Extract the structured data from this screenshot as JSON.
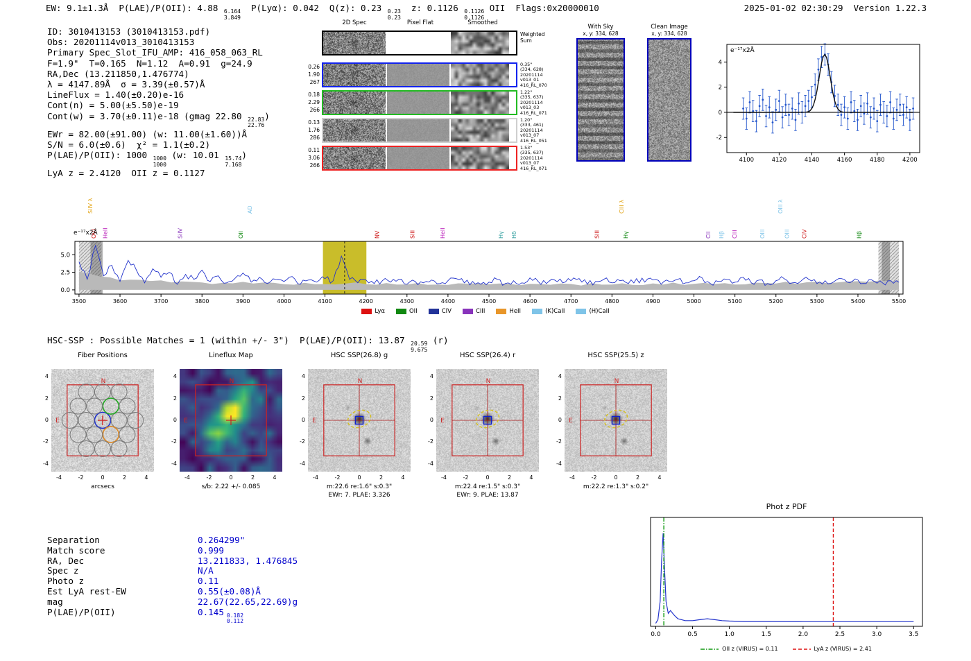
{
  "colors": {
    "value_blue": "#0000cc",
    "accent_red": "#cc2222",
    "band_yellow": "#c9bd2a",
    "spectrum_blue": "#2233cc",
    "panel_border_blue": "#0000bb"
  },
  "header": {
    "left": [
      {
        "t": "EW: 9.1±1.3Å  P(LAE)/P(OII): 4.88 "
      },
      {
        "hi": "6.164",
        "lo": "3.849"
      },
      {
        "t": "  P(Lyα): 0.042  Q(z): 0.23 "
      },
      {
        "hi": "0.23",
        "lo": "0.23"
      },
      {
        "t": "  z: 0.1126 "
      },
      {
        "hi": "0.1126",
        "lo": "0.1126"
      },
      {
        "t": " OII  Flags:0x20000010"
      }
    ],
    "right": "2025-01-02 02:30:29  Version 1.22.3"
  },
  "info": {
    "lines": [
      [
        {
          "t": "ID: 3010413153 (3010413153.pdf)"
        }
      ],
      [
        {
          "t": "Obs: 20201114v013_3010413153"
        }
      ],
      [
        {
          "t": "Primary Spec_Slot_IFU_AMP: 416_058_063_RL"
        }
      ],
      [
        {
          "t": "F=1.9\"  T=0.165  N=1.12  A=0.91  g=24.9"
        }
      ],
      [
        {
          "t": "RA,Dec (13.211850,1.476774)"
        }
      ],
      [
        {
          "t": "λ = 4147.89Å  σ = 3.39(±0.57)Å"
        }
      ],
      [
        {
          "t": "LineFlux = 1.40(±0.20)e-16"
        }
      ],
      [
        {
          "t": "Cont(n) = 5.00(±5.50)e-19"
        }
      ],
      [
        {
          "t": "Cont(w) = 3.70(±0.11)e-18 (gmag 22.80 "
        },
        {
          "hi": "22.83",
          "lo": "22.76"
        },
        {
          "t": ")"
        }
      ],
      [
        {
          "t": "EWr = 82.00(±91.00) (w: 11.00(±1.60))Å"
        }
      ],
      [
        {
          "t": "S/N = 6.0(±0.6)  χ² = 1.1(±0.2)"
        }
      ],
      [
        {
          "t": "P(LAE)/P(OII): 1000 "
        },
        {
          "hi": "1000",
          "lo": "1000"
        },
        {
          "t": " (w: 10.01 "
        },
        {
          "hi": "15.74",
          "lo": "7.168"
        },
        {
          "t": ")"
        }
      ],
      [
        {
          "t": "LyA z = 2.4120  OII z = 0.1127"
        }
      ]
    ]
  },
  "twod": {
    "col_headers": [
      "2D Spec",
      "Pixel Flat",
      "Smoothed"
    ],
    "weighted_sum_label": "Weighted\nSum",
    "rows": [
      {
        "border": "#000000",
        "left": "",
        "right": ""
      },
      {
        "border": "#1122ee",
        "left": "0.26\n1.90\n267",
        "right": "0.35\"\n(334, 628)\n20201114\nv013_01\n416_RL_070"
      },
      {
        "border": "#22bb22",
        "left": "0.18\n2.29\n266",
        "right": "1.22\"\n(335, 637)\n20201114\nv013_03\n416_RL_071"
      },
      {
        "border": "#cfcfcf",
        "left": "0.13\n1.76\n286",
        "right": "1.20\"\n(333, 461)\n20201114\nv013_07\n416_RL_051"
      },
      {
        "border": "#ee2222",
        "left": "0.11\n3.06\n266",
        "right": "1.53\"\n(335, 637)\n20201114\nv013_07\n416_RL_071"
      }
    ]
  },
  "withsky": {
    "title": "With Sky",
    "coords": "x, y: 334, 628"
  },
  "clean": {
    "title": "Clean Image",
    "coords": "x, y: 334, 628"
  },
  "hsc_header": [
    {
      "t": "HSC-SSP : Possible Matches = 1 (within +/- 3\")  P(LAE)/P(OII): 13.87 "
    },
    {
      "hi": "20.59",
      "lo": "9.675"
    },
    {
      "t": " (r)"
    }
  ],
  "cutouts": {
    "ticks": [
      -4,
      -2,
      0,
      2,
      4
    ],
    "compass": {
      "n": "N",
      "e": "E"
    },
    "fiber_circles": [
      [
        0,
        0,
        "b"
      ],
      [
        1.5,
        0,
        ""
      ],
      [
        -1.5,
        0,
        ""
      ],
      [
        3,
        0,
        ""
      ],
      [
        -3,
        0,
        ""
      ],
      [
        0.75,
        1.3,
        "g"
      ],
      [
        -0.75,
        1.3,
        ""
      ],
      [
        2.25,
        1.3,
        ""
      ],
      [
        -2.25,
        1.3,
        ""
      ],
      [
        0.75,
        -1.3,
        "o"
      ],
      [
        -0.75,
        -1.3,
        ""
      ],
      [
        2.25,
        -1.3,
        ""
      ],
      [
        -2.25,
        -1.3,
        ""
      ],
      [
        0,
        2.6,
        ""
      ],
      [
        1.5,
        2.6,
        ""
      ],
      [
        -1.5,
        2.6,
        ""
      ],
      [
        0,
        -2.6,
        ""
      ],
      [
        1.5,
        -2.6,
        ""
      ],
      [
        -1.5,
        -2.6,
        ""
      ]
    ],
    "panels": [
      {
        "title": "Fiber Positions",
        "xlabel": "arcsecs",
        "type": "fiber"
      },
      {
        "title": "Lineflux Map",
        "xlabel": "s/b: 2.22 +/- 0.085",
        "type": "lineflux"
      },
      {
        "title": "HSC SSP(26.8) g",
        "xlabel": "m:22.6 re:1.6\" s:0.3\"",
        "xlabel2": "EWr: 7. PLAE: 3.326",
        "type": "img"
      },
      {
        "title": "HSC SSP(26.4) r",
        "xlabel": "m:22.4 re:1.5\" s:0.3\"",
        "xlabel2": "EWr: 9. PLAE: 13.87",
        "type": "img"
      },
      {
        "title": "HSC SSP(25.5) z",
        "xlabel": "m:22.2 re:1.3\" s:0.2\"",
        "type": "img"
      }
    ]
  },
  "match_table": {
    "rows": [
      {
        "key": "Separation",
        "val": "0.264299\""
      },
      {
        "key": "Match score",
        "val": "0.999"
      },
      {
        "key": "RA, Dec",
        "val": "13.211833, 1.476845"
      },
      {
        "key": "Spec z",
        "val": "N/A"
      },
      {
        "key": "Photo z",
        "val": "0.11"
      },
      {
        "key": "Est LyA rest-EW",
        "val": "0.55(±0.08)Å"
      },
      {
        "key": "mag",
        "val": "22.67(22.65,22.69)g"
      },
      {
        "key": "P(LAE)/P(OII)",
        "val": "0.145",
        "hi": "0.182",
        "lo": "0.112"
      }
    ]
  },
  "chart_data": [
    {
      "id": "zoom_spec",
      "type": "scatter",
      "corner_label": "e⁻¹⁷x2Å",
      "xlim": [
        4088,
        4206
      ],
      "ylim": [
        -3.2,
        5.4
      ],
      "xticks": [
        4100,
        4120,
        4140,
        4160,
        4180,
        4200
      ],
      "yticks": [
        -2,
        0,
        2,
        4
      ],
      "gauss": {
        "amp": 4.6,
        "mu": 4147.89,
        "sigma": 3.39
      },
      "points": {
        "x_start": 4098,
        "x_step": 2,
        "yerr": 0.85,
        "y": [
          0.3,
          -0.5,
          0.8,
          0.1,
          -0.7,
          0.5,
          1.0,
          -0.3,
          0.4,
          -0.8,
          0.2,
          0.9,
          -0.4,
          0.6,
          -0.2,
          0.3,
          -0.6,
          0.7,
          0.0,
          0.5,
          0.9,
          1.2,
          2.2,
          3.4,
          4.4,
          4.6,
          3.8,
          2.4,
          1.3,
          0.6,
          -0.2,
          0.4,
          -0.5,
          0.8,
          0.1,
          -0.6,
          0.5,
          -0.1,
          0.7,
          -0.4,
          0.3,
          -0.7,
          0.6,
          0.0,
          -0.3,
          0.8,
          -0.5,
          0.2,
          0.6,
          -0.2,
          0.4,
          -0.6,
          0.3
        ]
      }
    },
    {
      "id": "main_spec",
      "type": "line",
      "corner_label": "e⁻¹⁷x2Å",
      "xlim": [
        3490,
        5510
      ],
      "ylim": [
        -0.6,
        6.9
      ],
      "xticks": [
        3500,
        3600,
        3700,
        3800,
        3900,
        4000,
        4100,
        4200,
        4300,
        4400,
        4500,
        4600,
        4700,
        4800,
        4900,
        5000,
        5100,
        5200,
        5300,
        5400,
        5500
      ],
      "yticks": [
        0,
        2.5,
        5
      ],
      "highlight_band": [
        4095,
        4201
      ],
      "highlight_color": "#c9bd2a",
      "dashed_line_x": 4147.89,
      "hatch_bands": [
        [
          3500,
          3555
        ],
        [
          5450,
          5500
        ]
      ],
      "shade_blocks": [
        [
          3528,
          3558
        ],
        [
          5458,
          5478
        ]
      ],
      "x_start": 3500,
      "x_step": 20,
      "values": [
        4.0,
        1.5,
        6.3,
        2.0,
        3.5,
        1.2,
        4.2,
        2.8,
        1.0,
        3.0,
        1.8,
        2.5,
        0.8,
        2.2,
        1.5,
        2.8,
        1.2,
        2.0,
        1.0,
        1.6,
        2.4,
        1.1,
        1.8,
        0.9,
        1.5,
        1.2,
        1.9,
        0.8,
        1.4,
        1.1,
        1.6,
        1.3,
        4.8,
        1.5,
        1.0,
        1.4,
        0.9,
        1.3,
        1.1,
        1.5,
        0.8,
        1.2,
        1.0,
        1.4,
        0.9,
        1.3,
        1.6,
        1.0,
        1.2,
        0.8,
        1.1,
        1.5,
        0.9,
        1.3,
        1.0,
        1.7,
        1.2,
        0.9,
        1.4,
        1.0,
        1.3,
        1.6,
        0.8,
        1.2,
        1.5,
        1.0,
        1.3,
        0.9,
        1.6,
        1.1,
        1.4,
        0.8,
        1.2,
        1.5,
        1.0,
        1.3,
        1.7,
        0.9,
        1.2,
        1.5,
        1.1,
        1.8,
        1.0,
        1.4,
        0.9,
        1.3,
        1.6,
        1.0,
        1.2,
        1.5,
        0.9,
        1.3,
        1.1,
        1.6,
        1.0,
        1.4,
        0.9,
        1.2,
        1.0,
        1.3,
        1.1
      ],
      "err_band": [
        2.5,
        1.5,
        1.2,
        1.0,
        1.0,
        0.9,
        0.9,
        0.9,
        0.8,
        0.8,
        0.8,
        0.8,
        0.8,
        0.8,
        0.8,
        0.9,
        0.9,
        1.0,
        1.0,
        1.1,
        1.2
      ],
      "line_labels": [
        {
          "text": "SiIV λ",
          "wave": 3532,
          "color": "#e2a414",
          "tier": 2
        },
        {
          "text": "OVI",
          "wave": 3541,
          "color": "#cc1111",
          "tier": 1
        },
        {
          "text": "HeII",
          "wave": 3569,
          "color": "#bb22bb",
          "tier": 1
        },
        {
          "text": "SiIV",
          "wave": 3751,
          "color": "#8833bb",
          "tier": 1
        },
        {
          "text": "OII",
          "wave": 3899,
          "color": "#118811",
          "tier": 1
        },
        {
          "text": "AD",
          "wave": 3921,
          "color": "#7fc4e8",
          "tier": 2
        },
        {
          "text": "NV",
          "wave": 4232,
          "color": "#cc1111",
          "tier": 1
        },
        {
          "text": "SIII",
          "wave": 4318,
          "color": "#cc1111",
          "tier": 1
        },
        {
          "text": "HeII",
          "wave": 4392,
          "color": "#bb22bb",
          "tier": 1
        },
        {
          "text": "Hγ",
          "wave": 4534,
          "color": "#33a0a0",
          "tier": 1
        },
        {
          "text": "Hδ",
          "wave": 4566,
          "color": "#33a0a0",
          "tier": 1
        },
        {
          "text": "SIII",
          "wave": 4768,
          "color": "#cc1111",
          "tier": 1
        },
        {
          "text": "CIII λ",
          "wave": 4828,
          "color": "#e2a414",
          "tier": 2
        },
        {
          "text": "Hγ",
          "wave": 4838,
          "color": "#118811",
          "tier": 1
        },
        {
          "text": "CII",
          "wave": 5040,
          "color": "#8833bb",
          "tier": 1
        },
        {
          "text": "Hβ",
          "wave": 5072,
          "color": "#7fc4e8",
          "tier": 1
        },
        {
          "text": "CIII",
          "wave": 5104,
          "color": "#bb22bb",
          "tier": 1
        },
        {
          "text": "OIII",
          "wave": 5172,
          "color": "#7fc4e8",
          "tier": 1
        },
        {
          "text": "OIII λ",
          "wave": 5216,
          "color": "#7fc4e8",
          "tier": 2
        },
        {
          "text": "OIII",
          "wave": 5232,
          "color": "#7fc4e8",
          "tier": 1
        },
        {
          "text": "CIV",
          "wave": 5274,
          "color": "#cc1111",
          "tier": 1
        },
        {
          "text": "Hβ",
          "wave": 5408,
          "color": "#118811",
          "tier": 1
        }
      ],
      "legend": [
        {
          "label": "Lyα",
          "color": "#dd1111"
        },
        {
          "label": "OII",
          "color": "#118811"
        },
        {
          "label": "CIV",
          "color": "#223399"
        },
        {
          "label": "CIII",
          "color": "#8833bb"
        },
        {
          "label": "HeII",
          "color": "#e8962a"
        },
        {
          "label": "(K)CaII",
          "color": "#7fc4e8"
        },
        {
          "label": "(H)CaII",
          "color": "#7fc4e8"
        }
      ]
    },
    {
      "id": "photz_pdf",
      "type": "line",
      "title": "Phot z PDF",
      "xlim": [
        -0.07,
        3.62
      ],
      "xticks": [
        0.0,
        0.5,
        1.0,
        1.5,
        2.0,
        2.5,
        3.0,
        3.5
      ],
      "x": [
        0,
        0.03,
        0.06,
        0.08,
        0.1,
        0.12,
        0.14,
        0.17,
        0.2,
        0.25,
        0.3,
        0.35,
        0.4,
        0.5,
        0.6,
        0.7,
        0.8,
        0.9,
        1.0,
        1.2,
        1.5,
        2.0,
        2.5,
        3.0,
        3.5
      ],
      "y": [
        0.01,
        0.05,
        0.25,
        0.7,
        1.0,
        0.6,
        0.25,
        0.12,
        0.15,
        0.1,
        0.06,
        0.05,
        0.04,
        0.04,
        0.05,
        0.06,
        0.05,
        0.04,
        0.035,
        0.03,
        0.03,
        0.028,
        0.028,
        0.028,
        0.028
      ],
      "vlines": [
        {
          "x": 0.11,
          "color": "#119911",
          "style": "dashdot",
          "label": "OII z (VIRUS) = 0.11"
        },
        {
          "x": 2.41,
          "color": "#dd1111",
          "style": "dashed",
          "label": "LyA z (VIRUS) = 2.41"
        }
      ]
    }
  ]
}
